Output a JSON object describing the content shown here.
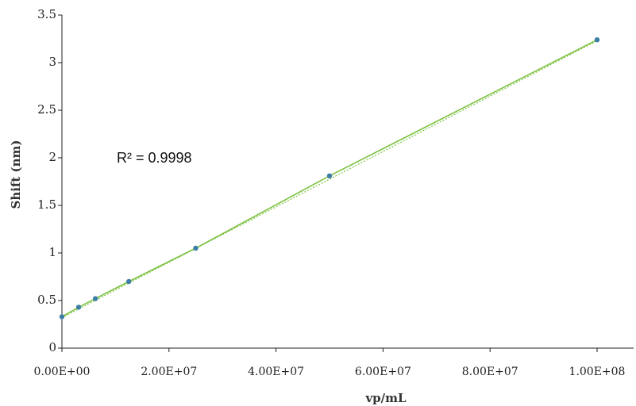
{
  "chart_data": {
    "type": "scatter",
    "xlabel": "vp/mL",
    "ylabel": "Shift (nm)",
    "xlim": [
      0,
      100000000
    ],
    "ylim": [
      0,
      3.5
    ],
    "x_ticks": [
      0,
      20000000,
      40000000,
      60000000,
      80000000,
      100000000
    ],
    "x_tick_labels": [
      "0.00E+00",
      "2.00E+07",
      "4.00E+07",
      "6.00E+07",
      "8.00E+07",
      "1.00E+08"
    ],
    "y_ticks": [
      0,
      0.5,
      1,
      1.5,
      2,
      2.5,
      3,
      3.5
    ],
    "y_tick_labels": [
      "0",
      "0.5",
      "1",
      "1.5",
      "2",
      "2.5",
      "3",
      "3.5"
    ],
    "grid": false,
    "series": [
      {
        "x": [
          0,
          3125000,
          6250000,
          12500000,
          25000000,
          50000000,
          100000000
        ],
        "y": [
          0.33,
          0.43,
          0.52,
          0.7,
          1.05,
          1.81,
          3.24
        ]
      }
    ],
    "trendline": {
      "type": "linear",
      "x": [
        0,
        100000000
      ],
      "y": [
        0.32,
        3.23
      ]
    },
    "annotations": [
      {
        "text": "R² = 0.9998"
      }
    ],
    "colors": {
      "marker": "#3d7ea6",
      "line": "#7dc242",
      "axis": "#222222"
    }
  }
}
